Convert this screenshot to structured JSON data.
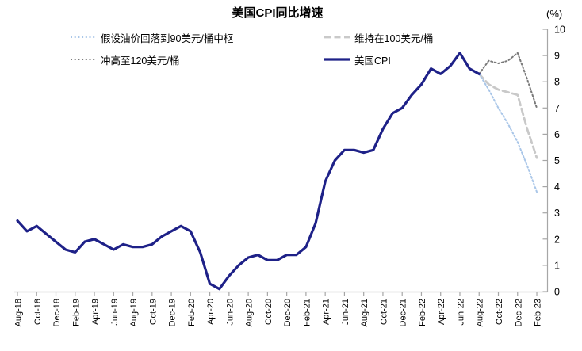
{
  "chart_data": {
    "type": "line",
    "title": "美国CPI同比增速",
    "unit_label": "(%)",
    "ylim": [
      0,
      10
    ],
    "yticks": [
      0,
      1,
      2,
      3,
      4,
      5,
      6,
      7,
      8,
      9,
      10
    ],
    "grid": false,
    "legend_position": "top",
    "axis_color": "#a6a6a6",
    "text_color": "#000000",
    "x_tick_labels": [
      "Aug-18",
      "Oct-18",
      "Dec-18",
      "Feb-19",
      "Apr-19",
      "Jun-19",
      "Aug-19",
      "Oct-19",
      "Dec-19",
      "Feb-20",
      "Apr-20",
      "Jun-20",
      "Aug-20",
      "Oct-20",
      "Dec-20",
      "Feb-21",
      "Apr-21",
      "Jun-21",
      "Aug-21",
      "Oct-21",
      "Dec-21",
      "Feb-22",
      "Apr-22",
      "Jun-22",
      "Aug-22",
      "Oct-22",
      "Dec-22",
      "Feb-23"
    ],
    "x_months": [
      "Aug-18",
      "Sep-18",
      "Oct-18",
      "Nov-18",
      "Dec-18",
      "Jan-19",
      "Feb-19",
      "Mar-19",
      "Apr-19",
      "May-19",
      "Jun-19",
      "Jul-19",
      "Aug-19",
      "Sep-19",
      "Oct-19",
      "Nov-19",
      "Dec-19",
      "Jan-20",
      "Feb-20",
      "Mar-20",
      "Apr-20",
      "May-20",
      "Jun-20",
      "Jul-20",
      "Aug-20",
      "Sep-20",
      "Oct-20",
      "Nov-20",
      "Dec-20",
      "Jan-21",
      "Feb-21",
      "Mar-21",
      "Apr-21",
      "May-21",
      "Jun-21",
      "Jul-21",
      "Aug-21",
      "Sep-21",
      "Oct-21",
      "Nov-21",
      "Dec-21",
      "Jan-22",
      "Feb-22",
      "Mar-22",
      "Apr-22",
      "May-22",
      "Jun-22",
      "Jul-22",
      "Aug-22",
      "Sep-22",
      "Oct-22",
      "Nov-22",
      "Dec-22",
      "Jan-23",
      "Feb-23"
    ],
    "series": [
      {
        "name": "美国CPI",
        "color": "#1e2188",
        "style": "solid",
        "width": 3.2,
        "start_index": 0,
        "values": [
          2.7,
          2.3,
          2.5,
          2.2,
          1.9,
          1.6,
          1.5,
          1.9,
          2.0,
          1.8,
          1.6,
          1.8,
          1.7,
          1.7,
          1.8,
          2.1,
          2.3,
          2.5,
          2.3,
          1.5,
          0.3,
          0.1,
          0.6,
          1.0,
          1.3,
          1.4,
          1.2,
          1.2,
          1.4,
          1.4,
          1.7,
          2.6,
          4.2,
          5.0,
          5.4,
          5.4,
          5.3,
          5.4,
          6.2,
          6.8,
          7.0,
          7.5,
          7.9,
          8.5,
          8.3,
          8.6,
          9.1,
          8.5,
          8.3
        ]
      },
      {
        "name": "假设油价回落到90美元/桶中枢",
        "color": "#a9c6e8",
        "style": "dotted",
        "width": 2,
        "start_index": 48,
        "values": [
          8.3,
          7.7,
          7.0,
          6.4,
          5.7,
          4.8,
          3.8
        ]
      },
      {
        "name": "维持在100美元/桶",
        "color": "#c9c9c9",
        "style": "dashed",
        "width": 2.8,
        "start_index": 48,
        "values": [
          8.3,
          7.9,
          7.7,
          7.6,
          7.5,
          6.2,
          5.1
        ]
      },
      {
        "name": "冲高至120美元/桶",
        "color": "#7a7a7a",
        "style": "dotted",
        "width": 2,
        "start_index": 48,
        "values": [
          8.3,
          8.8,
          8.7,
          8.8,
          9.1,
          8.1,
          7.0
        ]
      }
    ]
  }
}
